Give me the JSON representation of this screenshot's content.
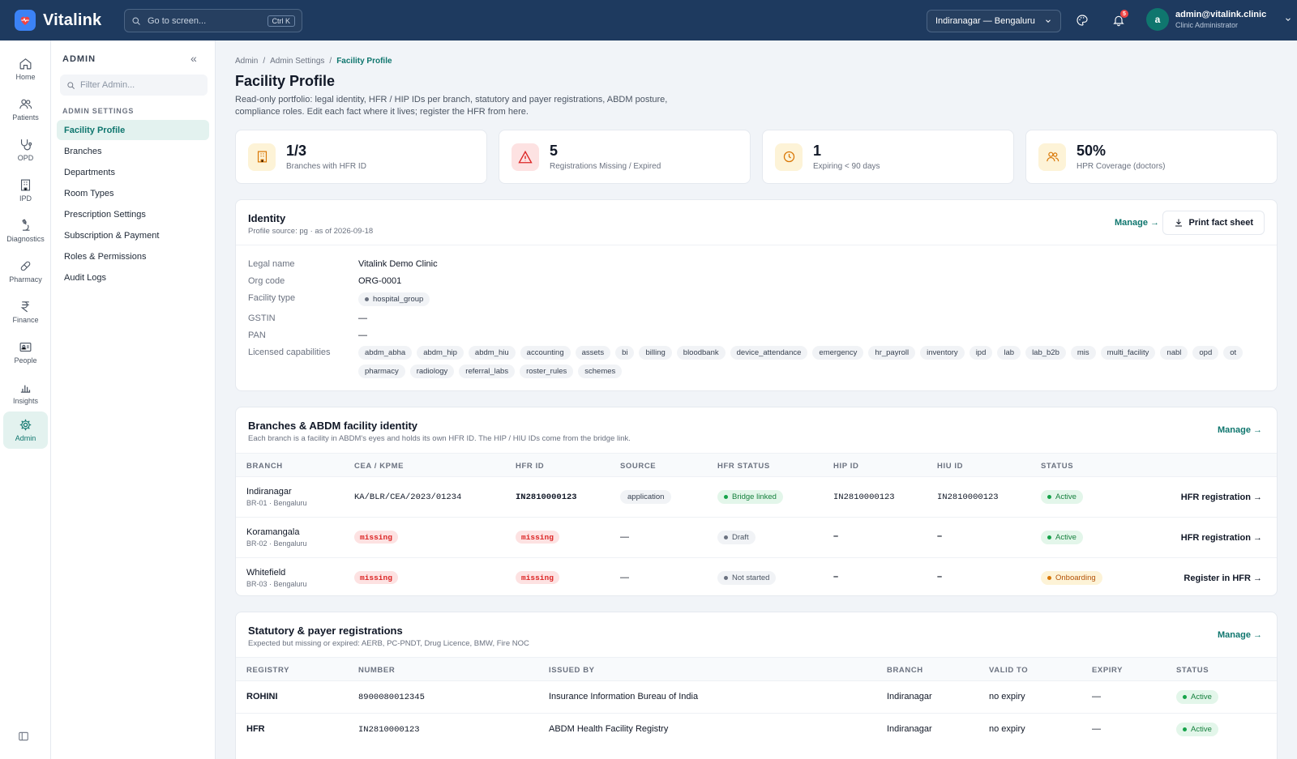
{
  "app": {
    "name": "Vitalink",
    "search_placeholder": "Go to screen...",
    "search_shortcut": "Ctrl K",
    "branch": "Indiranagar — Bengaluru",
    "notifications_count": "5",
    "user": {
      "initial": "a",
      "email": "admin@vitalink.clinic",
      "role": "Clinic Administrator"
    }
  },
  "rail": [
    "Home",
    "Patients",
    "OPD",
    "IPD",
    "Diagnostics",
    "Pharmacy",
    "Finance",
    "People",
    "Insights",
    "Admin"
  ],
  "subnav": {
    "title": "ADMIN",
    "filter_placeholder": "Filter Admin...",
    "section": "ADMIN SETTINGS",
    "items": [
      "Facility Profile",
      "Branches",
      "Departments",
      "Room Types",
      "Prescription Settings",
      "Subscription & Payment",
      "Roles & Permissions",
      "Audit Logs"
    ]
  },
  "breadcrumb": [
    "Admin",
    "/",
    "Admin Settings",
    "/",
    "Facility Profile"
  ],
  "page": {
    "title": "Facility Profile",
    "description": "Read-only portfolio: legal identity, HFR / HIP IDs per branch, statutory and payer registrations, ABDM posture, compliance roles. Edit each fact where it lives; register the HFR from here."
  },
  "kpis": [
    {
      "value": "1/3",
      "label": "Branches with HFR ID",
      "color": "#d97706",
      "bg": "#fdf3d7"
    },
    {
      "value": "5",
      "label": "Registrations Missing / Expired",
      "color": "#dc2626",
      "bg": "#fde2e2"
    },
    {
      "value": "1",
      "label": "Expiring < 90 days",
      "color": "#d97706",
      "bg": "#fdf3d7"
    },
    {
      "value": "50%",
      "label": "HPR Coverage (doctors)",
      "color": "#d97706",
      "bg": "#fdf3d7"
    }
  ],
  "identity": {
    "title": "Identity",
    "subtitle": "Profile source: pg · as of 2026-09-18",
    "manage": "Manage →",
    "print": "Print fact sheet",
    "fields": {
      "legal_name_label": "Legal name",
      "legal_name": "Vitalink Demo Clinic",
      "org_code_label": "Org code",
      "org_code": "ORG-0001",
      "facility_type_label": "Facility type",
      "facility_type": "hospital_group",
      "gstin_label": "GSTIN",
      "gstin": "—",
      "pan_label": "PAN",
      "pan": "—",
      "caps_label": "Licensed capabilities"
    },
    "capabilities": [
      "abdm_abha",
      "abdm_hip",
      "abdm_hiu",
      "accounting",
      "assets",
      "bi",
      "billing",
      "bloodbank",
      "device_attendance",
      "emergency",
      "hr_payroll",
      "inventory",
      "ipd",
      "lab",
      "lab_b2b",
      "mis",
      "multi_facility",
      "nabl",
      "opd",
      "ot",
      "pharmacy",
      "radiology",
      "referral_labs",
      "roster_rules",
      "schemes"
    ]
  },
  "branches": {
    "title": "Branches & ABDM facility identity",
    "subtitle": "Each branch is a facility in ABDM's eyes and holds its own HFR ID. The HIP / HIU IDs come from the bridge link.",
    "manage": "Manage →",
    "columns": [
      "BRANCH",
      "CEA / KPME",
      "HFR ID",
      "SOURCE",
      "HFR STATUS",
      "HIP ID",
      "HIU ID",
      "STATUS"
    ],
    "rows": [
      {
        "name": "Indiranagar",
        "sub": "BR-01 · Bengaluru",
        "cea": "KA/BLR/CEA/2023/01234",
        "hfr": "IN2810000123",
        "source": "application",
        "hfr_status": "Bridge linked",
        "hip": "IN2810000123",
        "hiu": "IN2810000123",
        "status": "Active",
        "action": "HFR registration →"
      },
      {
        "name": "Koramangala",
        "sub": "BR-02 · Bengaluru",
        "cea": "missing",
        "hfr": "missing",
        "source": "—",
        "hfr_status": "Draft",
        "hip": "–",
        "hiu": "–",
        "status": "Active",
        "action": "HFR registration →"
      },
      {
        "name": "Whitefield",
        "sub": "BR-03 · Bengaluru",
        "cea": "missing",
        "hfr": "missing",
        "source": "—",
        "hfr_status": "Not started",
        "hip": "–",
        "hiu": "–",
        "status": "Onboarding",
        "action": "Register in HFR →"
      }
    ]
  },
  "registrations": {
    "title": "Statutory & payer registrations",
    "subtitle": "Expected but missing or expired: AERB, PC-PNDT, Drug Licence, BMW, Fire NOC",
    "manage": "Manage →",
    "columns": [
      "REGISTRY",
      "NUMBER",
      "ISSUED BY",
      "BRANCH",
      "VALID TO",
      "EXPIRY",
      "STATUS"
    ],
    "rows": [
      {
        "registry": "ROHINI",
        "number": "8900080012345",
        "issued_by": "Insurance Information Bureau of India",
        "branch": "Indiranagar",
        "valid_to": "no expiry",
        "expiry": "—",
        "status": "Active"
      },
      {
        "registry": "HFR",
        "number": "IN2810000123",
        "issued_by": "ABDM Health Facility Registry",
        "branch": "Indiranagar",
        "valid_to": "no expiry",
        "expiry": "—",
        "status": "Active"
      }
    ]
  }
}
